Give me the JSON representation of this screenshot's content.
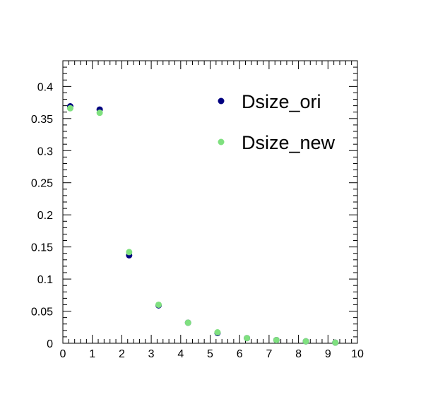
{
  "chart_data": {
    "type": "scatter",
    "title": "",
    "xlabel": "",
    "ylabel": "",
    "xlim": [
      0,
      10
    ],
    "ylim": [
      0,
      0.44
    ],
    "x_ticks": [
      "0",
      "1",
      "2",
      "3",
      "4",
      "5",
      "6",
      "7",
      "8",
      "9",
      "10"
    ],
    "y_ticks": [
      "0",
      "0.05",
      "0.1",
      "0.15",
      "0.2",
      "0.25",
      "0.3",
      "0.35",
      "0.4"
    ],
    "grid": false,
    "legend_position": "top-right",
    "series": [
      {
        "name": "Dsize_ori",
        "color": "#000080",
        "x": [
          0.25,
          1.25,
          2.25,
          3.25,
          4.25,
          5.25,
          6.25,
          7.25,
          8.25,
          9.25
        ],
        "y": [
          0.369,
          0.364,
          0.137,
          0.059,
          0.032,
          0.016,
          0.008,
          0.005,
          0.003,
          0.001
        ]
      },
      {
        "name": "Dsize_new",
        "color": "#7FE07F",
        "x": [
          0.25,
          1.25,
          2.25,
          3.25,
          4.25,
          5.25,
          6.25,
          7.25,
          8.25,
          9.25
        ],
        "y": [
          0.366,
          0.359,
          0.142,
          0.06,
          0.032,
          0.017,
          0.008,
          0.005,
          0.003,
          0.001
        ]
      }
    ]
  }
}
